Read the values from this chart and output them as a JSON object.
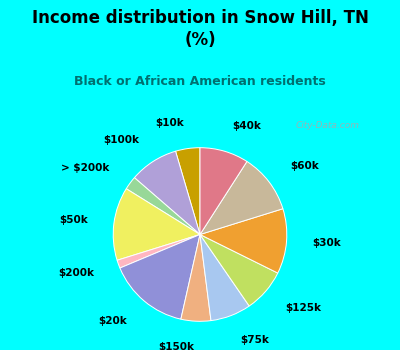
{
  "title": "Income distribution in Snow Hill, TN\n(%)",
  "subtitle": "Black or African American residents",
  "slices": [
    {
      "label": "$10k",
      "value": 4.5,
      "color": "#c8a000"
    },
    {
      "label": "$100k",
      "value": 9.0,
      "color": "#b0a0d8"
    },
    {
      "label": "> $200k",
      "value": 2.5,
      "color": "#98d898"
    },
    {
      "label": "$50k",
      "value": 13.5,
      "color": "#f0f060"
    },
    {
      "label": "$200k",
      "value": 1.5,
      "color": "#ffb6c1"
    },
    {
      "label": "$20k",
      "value": 15.0,
      "color": "#9090d8"
    },
    {
      "label": "$150k",
      "value": 5.5,
      "color": "#f0b080"
    },
    {
      "label": "$75k",
      "value": 7.5,
      "color": "#a8c8f0"
    },
    {
      "label": "$125k",
      "value": 8.0,
      "color": "#c0e060"
    },
    {
      "label": "$30k",
      "value": 12.0,
      "color": "#f0a030"
    },
    {
      "label": "$60k",
      "value": 11.0,
      "color": "#c8b89a"
    },
    {
      "label": "$40k",
      "value": 9.0,
      "color": "#e07888"
    }
  ],
  "bg_color_top": "#00ffff",
  "bg_color_chart": "#c8eedd",
  "title_color": "#000000",
  "subtitle_color": "#007070",
  "watermark": "City-Data.com",
  "label_fontsize": 7.5,
  "title_fontsize": 12,
  "subtitle_fontsize": 9
}
